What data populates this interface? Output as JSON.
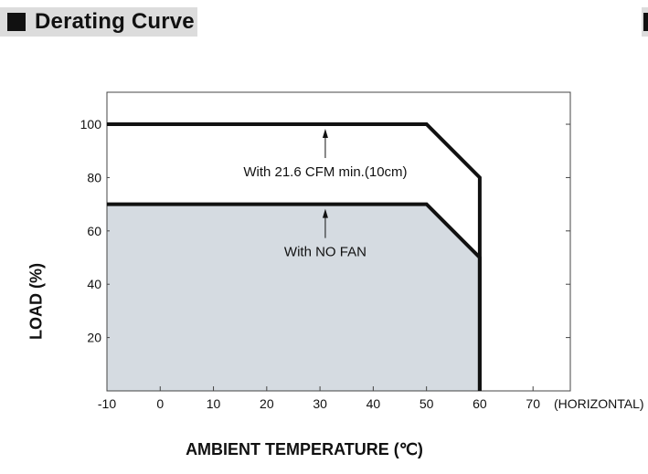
{
  "header": {
    "title": "Derating Curve"
  },
  "chart_data": {
    "type": "line",
    "xlabel": "AMBIENT TEMPERATURE (℃)",
    "ylabel": "LOAD (%)",
    "x_ticks": [
      "-10",
      "0",
      "10",
      "20",
      "30",
      "40",
      "50",
      "60",
      "70"
    ],
    "x_suffix_label": "(HORIZONTAL)",
    "y_ticks": [
      "20",
      "40",
      "60",
      "80",
      "100"
    ],
    "xlim": [
      -10,
      77
    ],
    "ylim": [
      0,
      112
    ],
    "grid": false,
    "series": [
      {
        "name": "With 21.6 CFM min.(10cm)",
        "points": [
          [
            -10,
            100
          ],
          [
            50,
            100
          ],
          [
            60,
            80
          ],
          [
            60,
            0
          ]
        ],
        "annotation_at": [
          31,
          100
        ]
      },
      {
        "name": "With NO FAN",
        "points": [
          [
            -10,
            70
          ],
          [
            50,
            70
          ],
          [
            60,
            50
          ],
          [
            60,
            0
          ]
        ],
        "filled": true,
        "annotation_at": [
          31,
          70
        ]
      }
    ],
    "colors": {
      "fill": "#d5dbe1",
      "line": "#111111",
      "frame": "#444444"
    }
  }
}
